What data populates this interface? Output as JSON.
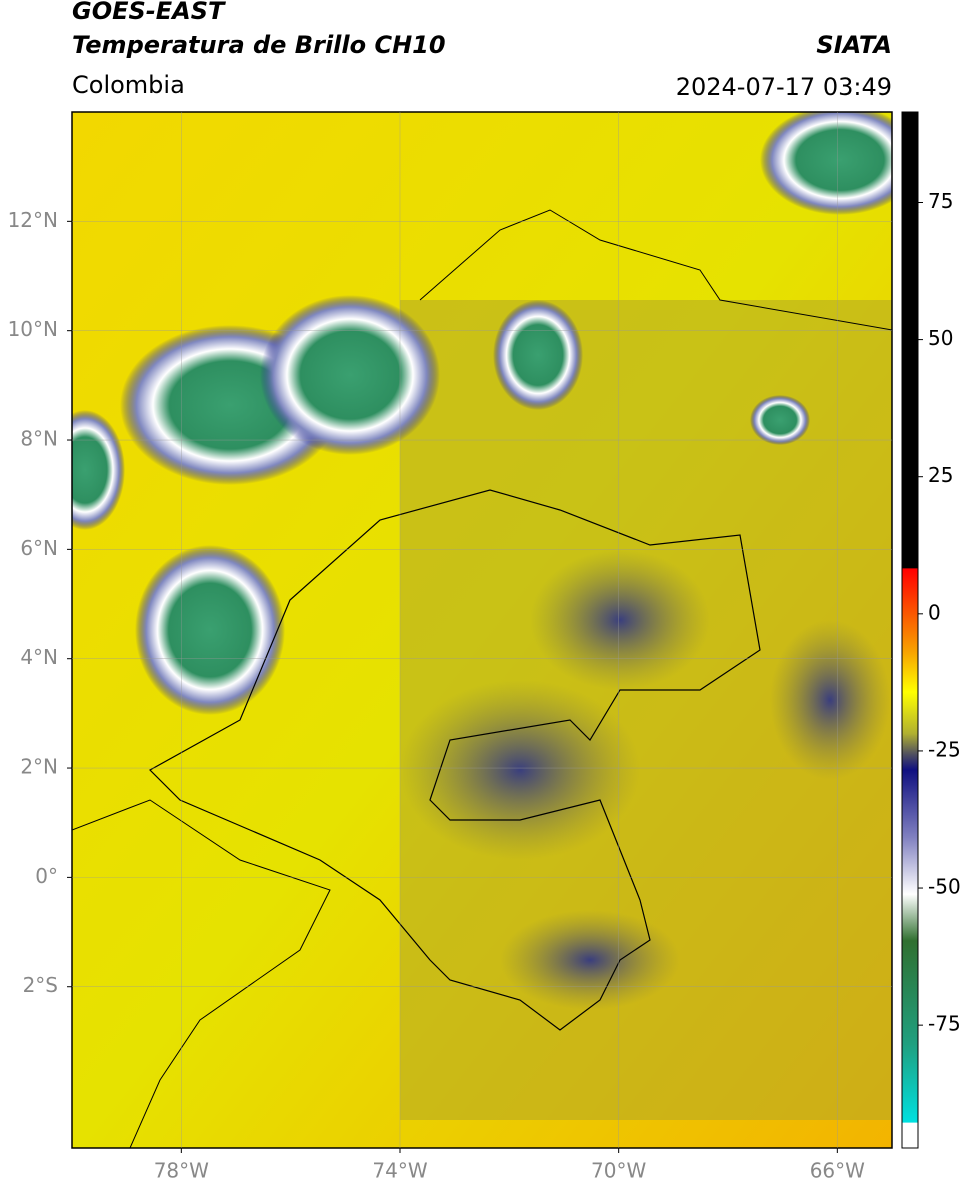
{
  "header": {
    "title": "GOES-EAST",
    "subtitle": "Temperatura de Brillo CH10",
    "region": "Colombia",
    "source": "SIATA",
    "datetime": "2024-07-17 03:49"
  },
  "map": {
    "xlim": [
      -80,
      -65
    ],
    "ylim": [
      -4.95,
      14
    ],
    "xticks": [
      {
        "value": -78,
        "label": "78°W"
      },
      {
        "value": -74,
        "label": "74°W"
      },
      {
        "value": -70,
        "label": "70°W"
      },
      {
        "value": -66,
        "label": "66°W"
      }
    ],
    "yticks": [
      {
        "value": 12,
        "label": "12°N"
      },
      {
        "value": 10,
        "label": "10°N"
      },
      {
        "value": 8,
        "label": "8°N"
      },
      {
        "value": 6,
        "label": "6°N"
      },
      {
        "value": 4,
        "label": "4°N"
      },
      {
        "value": 2,
        "label": "2°N"
      },
      {
        "value": 0,
        "label": "0°"
      },
      {
        "value": -2,
        "label": "2°S"
      }
    ]
  },
  "colorbar": {
    "lim": [
      -97.4,
      91.5
    ],
    "ticks": [
      75,
      50,
      25,
      0,
      -25,
      -50,
      -75
    ]
  }
}
